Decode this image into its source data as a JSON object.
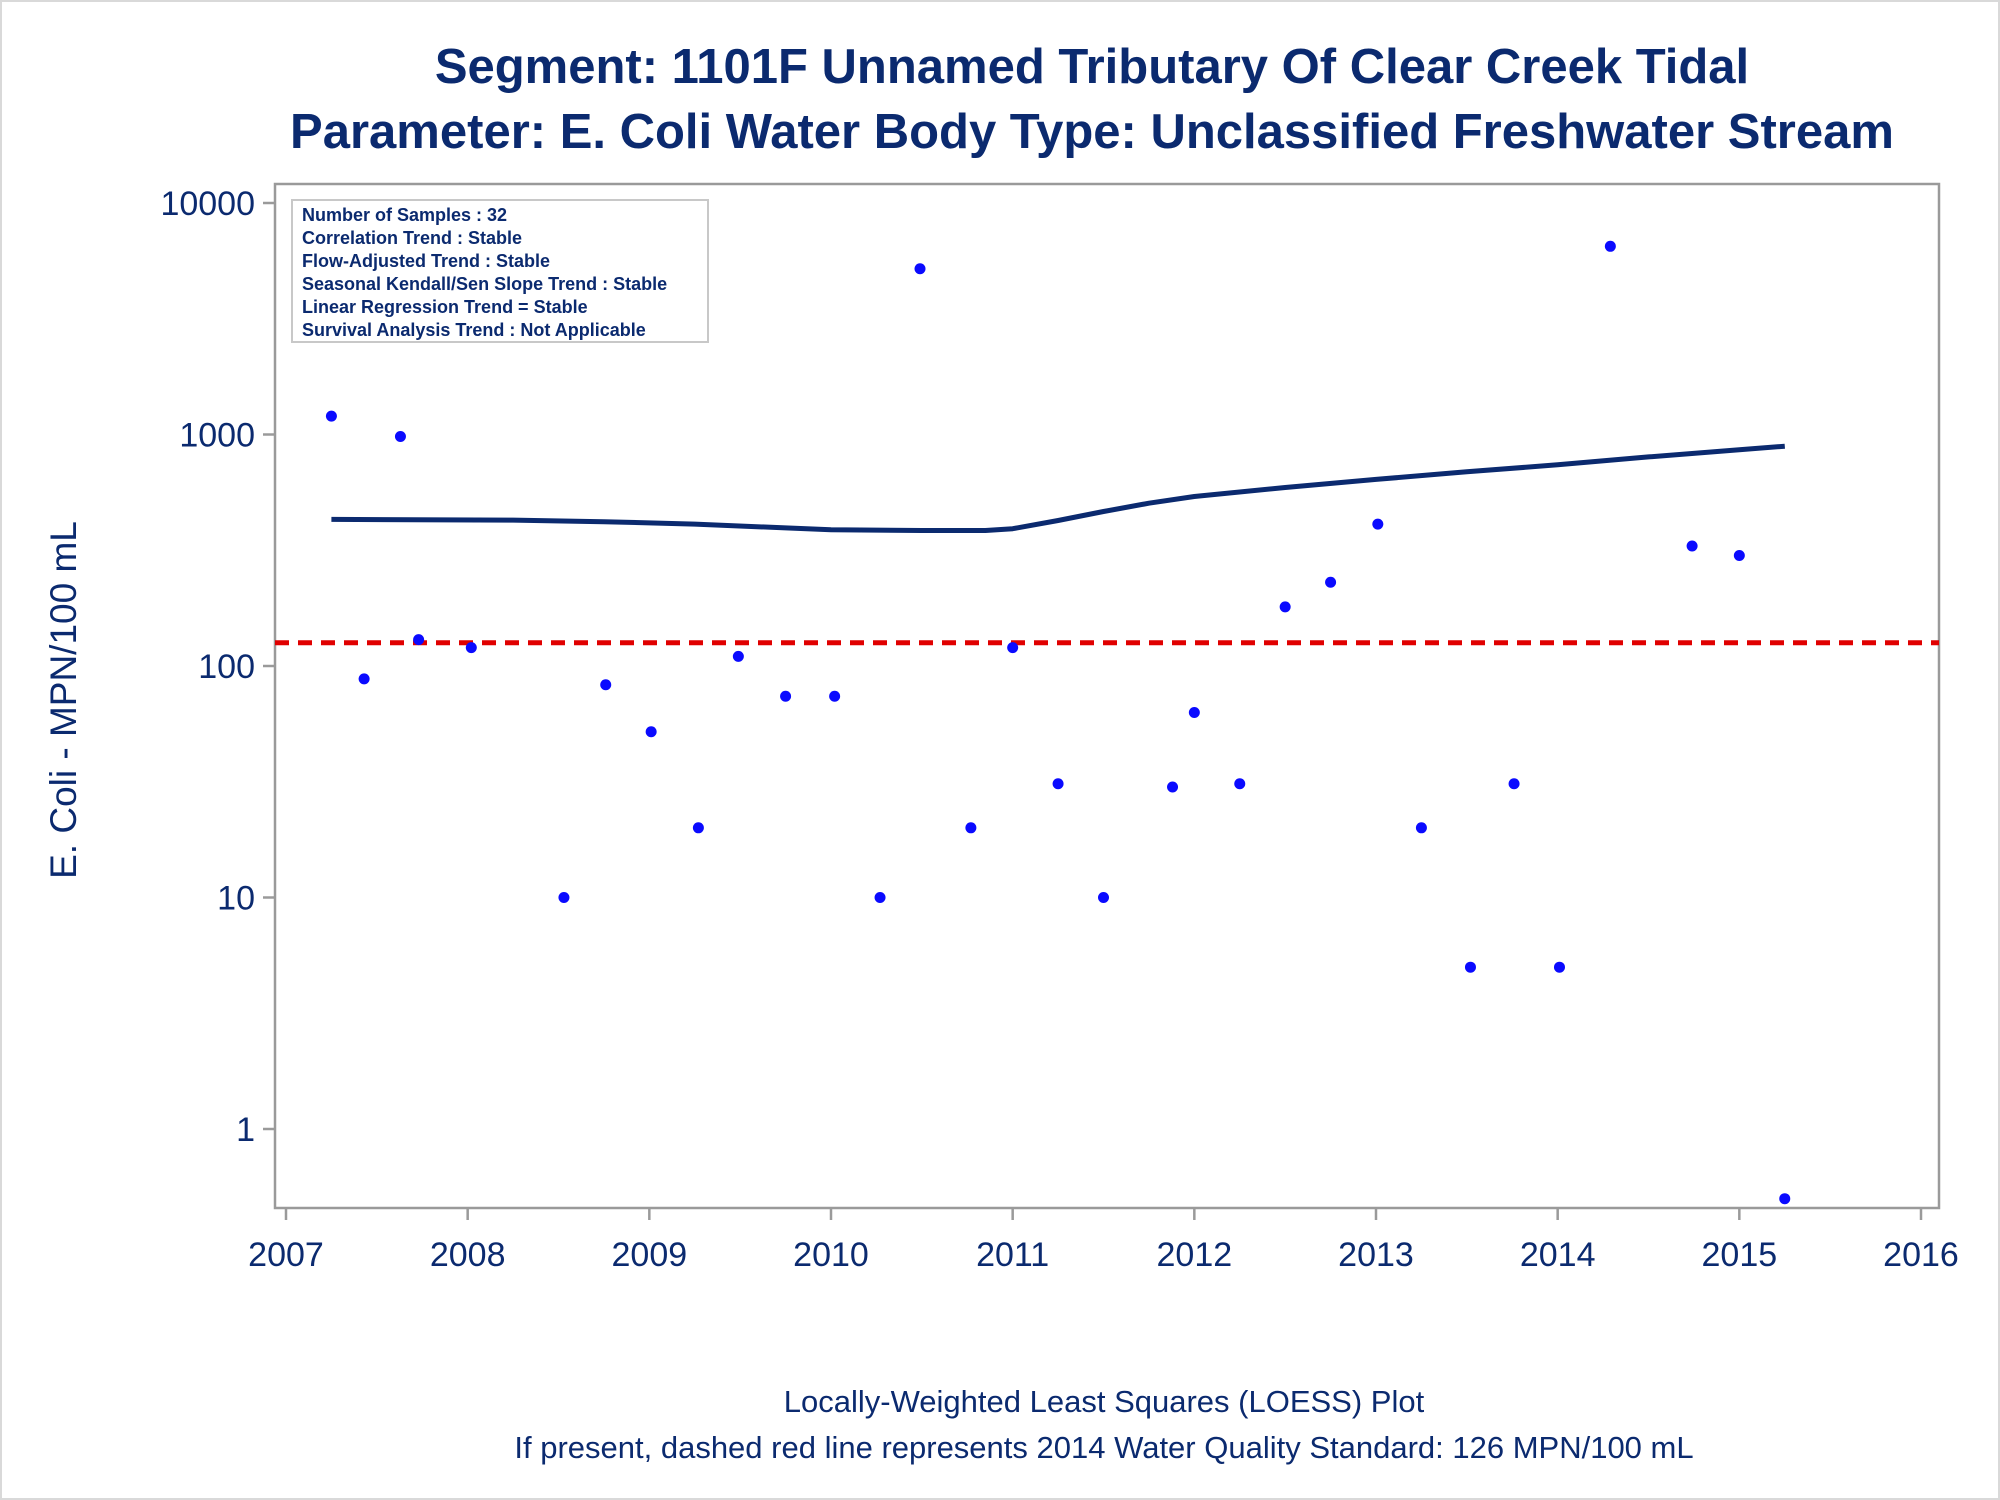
{
  "titles": {
    "line1": "Segment: 1101F  Unnamed Tributary Of Clear Creek Tidal",
    "line2": "Parameter: E. Coli   Water Body Type: Unclassified Freshwater Stream"
  },
  "stats_box": [
    "Number of Samples : 32",
    "Correlation Trend : Stable",
    "Flow-Adjusted Trend : Stable",
    "Seasonal Kendall/Sen Slope Trend : Stable",
    "Linear Regression Trend = Stable",
    "Survival Analysis Trend : Not Applicable"
  ],
  "footer": {
    "line1": "Locally-Weighted Least Squares (LOESS) Plot",
    "line2": "If present, dashed red line represents 2014 Water Quality Standard: 126 MPN/100 mL"
  },
  "colors": {
    "text": "#0b2a6f",
    "points": "#0a0aff",
    "loess": "#0b2a6f",
    "standard": "#e00000",
    "axis": "#9a9a9a"
  },
  "chart_data": {
    "type": "scatter",
    "ylabel": "E. Coli - MPN/100 mL",
    "xlabel": "",
    "yscale": "log",
    "xlim": [
      2007,
      2016
    ],
    "ylim": [
      0.45,
      10000
    ],
    "xticks": [
      "2007",
      "2008",
      "2009",
      "2010",
      "2011",
      "2012",
      "2013",
      "2014",
      "2015",
      "2016"
    ],
    "yticks": [
      "1",
      "10",
      "100",
      "1000",
      "10000"
    ],
    "grid": false,
    "standard_value": 126,
    "points": [
      {
        "x": 2007.25,
        "y": 1200
      },
      {
        "x": 2007.43,
        "y": 88
      },
      {
        "x": 2007.63,
        "y": 980
      },
      {
        "x": 2007.73,
        "y": 130
      },
      {
        "x": 2008.02,
        "y": 120
      },
      {
        "x": 2008.53,
        "y": 10
      },
      {
        "x": 2008.76,
        "y": 83
      },
      {
        "x": 2009.01,
        "y": 52
      },
      {
        "x": 2009.27,
        "y": 20
      },
      {
        "x": 2009.49,
        "y": 110
      },
      {
        "x": 2009.75,
        "y": 74
      },
      {
        "x": 2010.02,
        "y": 74
      },
      {
        "x": 2010.27,
        "y": 10
      },
      {
        "x": 2010.49,
        "y": 5200
      },
      {
        "x": 2010.77,
        "y": 20
      },
      {
        "x": 2011.0,
        "y": 120
      },
      {
        "x": 2011.25,
        "y": 31
      },
      {
        "x": 2011.5,
        "y": 10
      },
      {
        "x": 2011.88,
        "y": 30
      },
      {
        "x": 2012.0,
        "y": 63
      },
      {
        "x": 2012.25,
        "y": 31
      },
      {
        "x": 2012.5,
        "y": 180
      },
      {
        "x": 2012.75,
        "y": 230
      },
      {
        "x": 2013.01,
        "y": 410
      },
      {
        "x": 2013.25,
        "y": 20
      },
      {
        "x": 2013.52,
        "y": 5
      },
      {
        "x": 2013.76,
        "y": 31
      },
      {
        "x": 2014.01,
        "y": 5
      },
      {
        "x": 2014.29,
        "y": 6500
      },
      {
        "x": 2014.74,
        "y": 330
      },
      {
        "x": 2015.0,
        "y": 300
      },
      {
        "x": 2015.25,
        "y": 0.5
      }
    ],
    "loess": [
      {
        "x": 2007.25,
        "y": 430
      },
      {
        "x": 2008.25,
        "y": 427
      },
      {
        "x": 2008.75,
        "y": 420
      },
      {
        "x": 2009.25,
        "y": 410
      },
      {
        "x": 2009.75,
        "y": 395
      },
      {
        "x": 2010.0,
        "y": 388
      },
      {
        "x": 2010.5,
        "y": 385
      },
      {
        "x": 2010.85,
        "y": 385
      },
      {
        "x": 2011.0,
        "y": 392
      },
      {
        "x": 2011.25,
        "y": 425
      },
      {
        "x": 2011.5,
        "y": 465
      },
      {
        "x": 2011.75,
        "y": 505
      },
      {
        "x": 2012.0,
        "y": 540
      },
      {
        "x": 2012.5,
        "y": 590
      },
      {
        "x": 2013.0,
        "y": 640
      },
      {
        "x": 2013.5,
        "y": 690
      },
      {
        "x": 2014.0,
        "y": 740
      },
      {
        "x": 2014.5,
        "y": 800
      },
      {
        "x": 2015.0,
        "y": 860
      },
      {
        "x": 2015.25,
        "y": 890
      }
    ]
  }
}
